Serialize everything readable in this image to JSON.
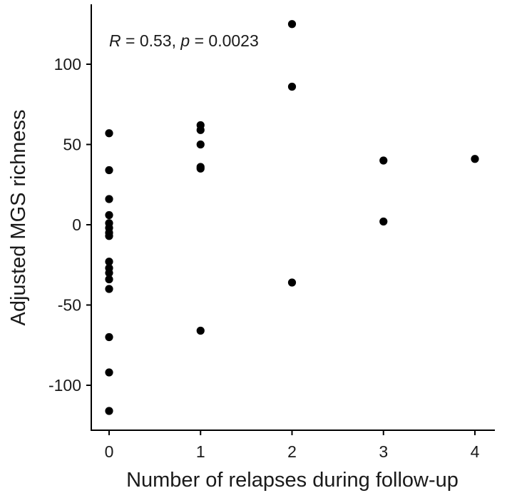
{
  "chart_data": {
    "type": "scatter",
    "xlabel": "Number of relapses during follow-up",
    "ylabel": "Adjusted MGS richness",
    "xlim": [
      -0.2,
      4.2
    ],
    "ylim": [
      -127,
      138
    ],
    "x_ticks": [
      0,
      1,
      2,
      3,
      4
    ],
    "y_ticks": [
      -100,
      -50,
      0,
      50,
      100
    ],
    "x_tick_labels": [
      "0",
      "1",
      "2",
      "3",
      "4"
    ],
    "y_tick_labels": [
      "-100",
      "-50",
      "0",
      "50",
      "100"
    ],
    "grid": false,
    "legend": "none",
    "point_color": "#000000",
    "annotation": {
      "r_symbol": "R",
      "r_text": " = 0.53, ",
      "p_symbol": "p",
      "p_text": " = 0.0023"
    },
    "points": [
      {
        "x": 0,
        "y": 57
      },
      {
        "x": 0,
        "y": 34
      },
      {
        "x": 0,
        "y": 16
      },
      {
        "x": 0,
        "y": 6
      },
      {
        "x": 0,
        "y": 1
      },
      {
        "x": 0,
        "y": -2
      },
      {
        "x": 0,
        "y": -5
      },
      {
        "x": 0,
        "y": -7
      },
      {
        "x": 0,
        "y": -23
      },
      {
        "x": 0,
        "y": -27
      },
      {
        "x": 0,
        "y": -30
      },
      {
        "x": 0,
        "y": -34
      },
      {
        "x": 0,
        "y": -40
      },
      {
        "x": 0,
        "y": -70
      },
      {
        "x": 0,
        "y": -92
      },
      {
        "x": 0,
        "y": -116
      },
      {
        "x": 1,
        "y": 62
      },
      {
        "x": 1,
        "y": 59
      },
      {
        "x": 1,
        "y": 50
      },
      {
        "x": 1,
        "y": 36
      },
      {
        "x": 1,
        "y": 35
      },
      {
        "x": 1,
        "y": -66
      },
      {
        "x": 2,
        "y": 125
      },
      {
        "x": 2,
        "y": 86
      },
      {
        "x": 2,
        "y": -36
      },
      {
        "x": 3,
        "y": 40
      },
      {
        "x": 3,
        "y": 2
      },
      {
        "x": 4,
        "y": 41
      }
    ]
  }
}
